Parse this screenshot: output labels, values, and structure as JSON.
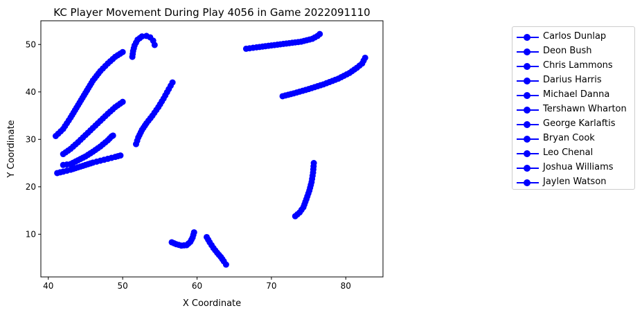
{
  "chart_data": {
    "type": "line",
    "title": "KC Player Movement During Play 4056 in Game 2022091110",
    "xlabel": "X Coordinate",
    "ylabel": "Y Coordinate",
    "xlim": [
      39,
      85
    ],
    "ylim": [
      1,
      55
    ],
    "xticks": [
      40,
      50,
      60,
      70,
      80
    ],
    "yticks": [
      10,
      20,
      30,
      40,
      50
    ],
    "grid": false,
    "legend_position": "outside-right",
    "color": "#0000ff",
    "marker": "circle",
    "series": [
      {
        "name": "Carlos Dunlap",
        "points": [
          [
            41,
            30.7
          ],
          [
            42,
            32.2
          ],
          [
            43,
            34.6
          ],
          [
            44,
            37.2
          ],
          [
            45,
            39.8
          ],
          [
            46,
            42.4
          ],
          [
            47,
            44.4
          ],
          [
            48,
            46.0
          ],
          [
            49,
            47.4
          ],
          [
            50,
            48.4
          ]
        ]
      },
      {
        "name": "Deon Bush",
        "points": [
          [
            42,
            26.9
          ],
          [
            43,
            28.0
          ],
          [
            44,
            29.4
          ],
          [
            45,
            30.9
          ],
          [
            46,
            32.4
          ],
          [
            47,
            33.9
          ],
          [
            48,
            35.4
          ],
          [
            49,
            36.8
          ],
          [
            50,
            37.9
          ]
        ]
      },
      {
        "name": "Chris Lammons",
        "points": [
          [
            42,
            24.6
          ],
          [
            43,
            24.8
          ],
          [
            44,
            25.6
          ],
          [
            45,
            26.4
          ],
          [
            46,
            27.4
          ],
          [
            47,
            28.5
          ],
          [
            48,
            29.8
          ],
          [
            48.5,
            30.6
          ],
          [
            48.7,
            30.8
          ]
        ]
      },
      {
        "name": "Darius Harris",
        "points": [
          [
            41.2,
            22.9
          ],
          [
            42,
            23.2
          ],
          [
            43,
            23.6
          ],
          [
            44,
            24.1
          ],
          [
            45,
            24.6
          ],
          [
            46,
            25.1
          ],
          [
            47,
            25.5
          ],
          [
            48,
            25.9
          ],
          [
            49,
            26.3
          ],
          [
            49.7,
            26.6
          ]
        ]
      },
      {
        "name": "Michael Danna",
        "points": [
          [
            51.3,
            47.4
          ],
          [
            51.4,
            48.6
          ],
          [
            51.6,
            49.8
          ],
          [
            52,
            51.0
          ],
          [
            52.6,
            51.7
          ],
          [
            53.2,
            51.8
          ],
          [
            53.7,
            51.5
          ],
          [
            54.1,
            50.8
          ],
          [
            54.3,
            49.9
          ]
        ]
      },
      {
        "name": "Tershawn Wharton",
        "points": [
          [
            51.8,
            29.0
          ],
          [
            52.1,
            30.4
          ],
          [
            52.6,
            32.0
          ],
          [
            53.2,
            33.4
          ],
          [
            54,
            35.0
          ],
          [
            54.8,
            36.8
          ],
          [
            55.5,
            38.6
          ],
          [
            56.2,
            40.6
          ],
          [
            56.7,
            42.0
          ]
        ]
      },
      {
        "name": "George Karlaftis",
        "points": [
          [
            66.6,
            49.1
          ],
          [
            68,
            49.4
          ],
          [
            70,
            49.8
          ],
          [
            72,
            50.2
          ],
          [
            74,
            50.6
          ],
          [
            75.5,
            51.2
          ],
          [
            76.2,
            51.8
          ],
          [
            76.5,
            52.2
          ]
        ]
      },
      {
        "name": "Bryan Cook",
        "points": [
          [
            71.5,
            39.1
          ],
          [
            73,
            39.7
          ],
          [
            75,
            40.6
          ],
          [
            77,
            41.6
          ],
          [
            79,
            42.8
          ],
          [
            80.5,
            44.0
          ],
          [
            81.5,
            45.1
          ],
          [
            82.2,
            46.0
          ],
          [
            82.6,
            47.2
          ]
        ]
      },
      {
        "name": "Leo Chenal",
        "points": [
          [
            73.2,
            13.8
          ],
          [
            73.8,
            14.6
          ],
          [
            74.3,
            15.7
          ],
          [
            74.7,
            17.4
          ],
          [
            75.1,
            19.2
          ],
          [
            75.4,
            21.0
          ],
          [
            75.6,
            23.0
          ],
          [
            75.7,
            25.0
          ]
        ]
      },
      {
        "name": "Joshua Williams",
        "points": [
          [
            56.6,
            8.3
          ],
          [
            57.2,
            7.9
          ],
          [
            57.9,
            7.6
          ],
          [
            58.6,
            7.7
          ],
          [
            59.1,
            8.4
          ],
          [
            59.4,
            9.3
          ],
          [
            59.6,
            10.4
          ]
        ]
      },
      {
        "name": "Jaylen Watson",
        "points": [
          [
            61.3,
            9.4
          ],
          [
            61.7,
            8.3
          ],
          [
            62.2,
            7.1
          ],
          [
            62.7,
            6.1
          ],
          [
            63.2,
            5.2
          ],
          [
            63.6,
            4.3
          ],
          [
            63.9,
            3.6
          ]
        ]
      }
    ]
  }
}
